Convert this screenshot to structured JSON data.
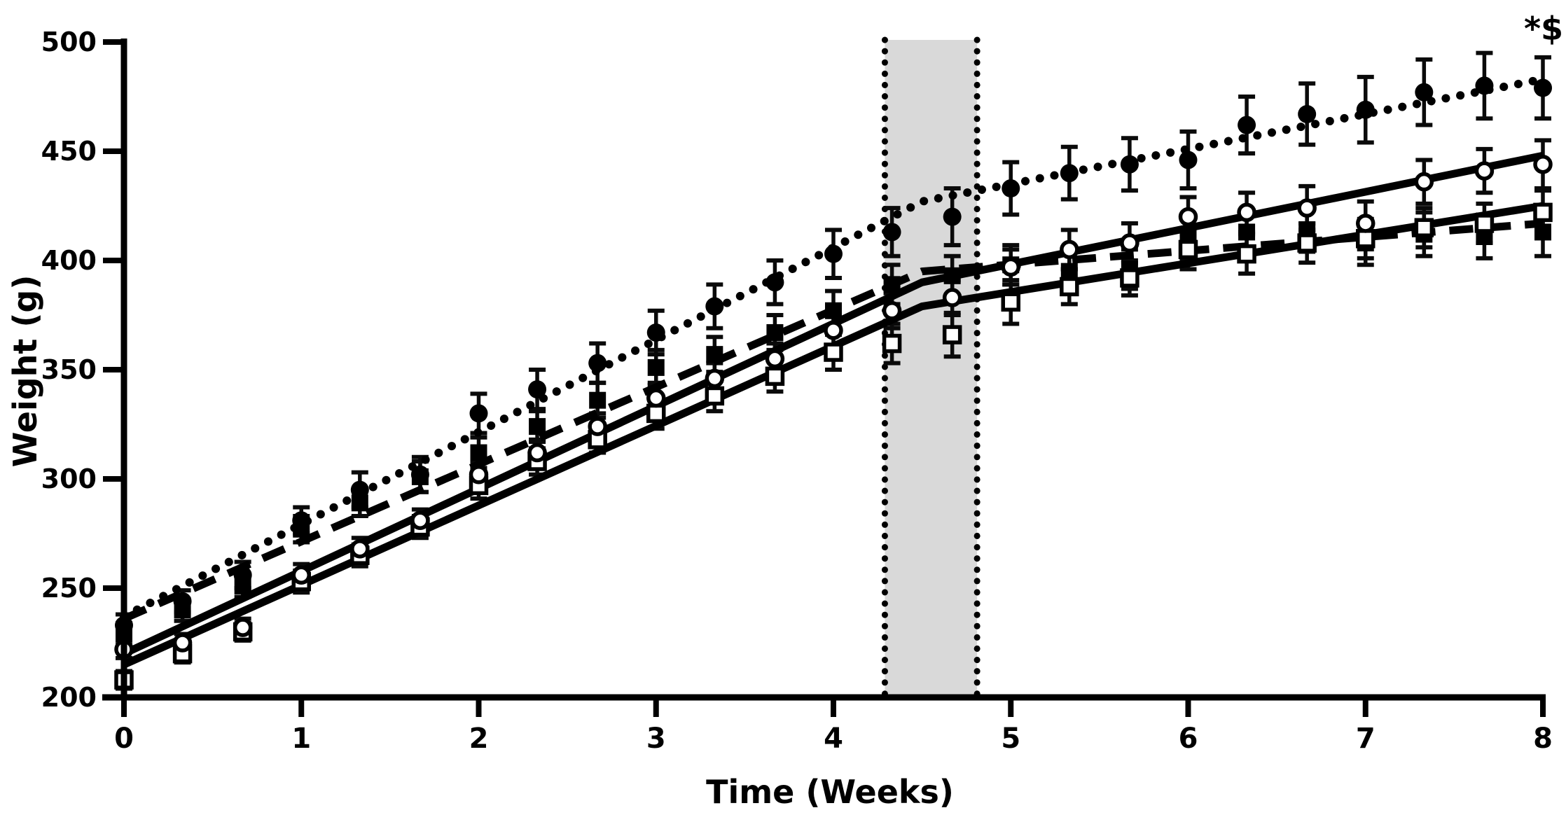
{
  "annotation": {
    "text": "*$"
  },
  "chart_data": {
    "type": "line",
    "title": "",
    "xlabel": "Time (Weeks)",
    "ylabel": "Weight (g)",
    "xlim": [
      0,
      8
    ],
    "ylim": [
      200,
      500
    ],
    "xticks": [
      0,
      1,
      2,
      3,
      4,
      5,
      6,
      7,
      8
    ],
    "yticks": [
      200,
      250,
      300,
      350,
      400,
      450,
      500
    ],
    "grid": false,
    "legend": "none",
    "background_color": "#ffffff",
    "line_color": "#000000",
    "shaded_region": {
      "x_start": 4.29,
      "x_end": 4.81,
      "color": "#d9d9d9",
      "border_style": "dotted-vertical-lines"
    },
    "annotation": {
      "text": "*$",
      "position": "top-right"
    },
    "x": [
      0,
      0.33,
      0.67,
      1,
      1.33,
      1.67,
      2,
      2.33,
      2.67,
      3,
      3.33,
      3.67,
      4,
      4.33,
      4.67,
      5,
      5.33,
      5.67,
      6,
      6.33,
      6.67,
      7,
      7.33,
      7.67,
      8
    ],
    "series": [
      {
        "id": "filled-square-dashed",
        "marker": "filled-square",
        "line": "dashed",
        "values": [
          229,
          240,
          251,
          277,
          289,
          301,
          312,
          324,
          336,
          351,
          357,
          367,
          377,
          389,
          393,
          398,
          395,
          396,
          410,
          413,
          414,
          408,
          412,
          411,
          413
        ],
        "errors": [
          5,
          5,
          5,
          6,
          6,
          7,
          7,
          7,
          8,
          8,
          8,
          8,
          9,
          9,
          9,
          9,
          9,
          9,
          10,
          10,
          10,
          10,
          10,
          10,
          11
        ],
        "trend": [
          [
            0,
            236
          ],
          [
            4.5,
            395
          ],
          [
            8,
            417
          ]
        ]
      },
      {
        "id": "open-square-solid",
        "marker": "open-square",
        "line": "solid",
        "values": [
          208,
          220,
          230,
          253,
          265,
          278,
          297,
          308,
          318,
          330,
          338,
          347,
          358,
          362,
          366,
          381,
          388,
          392,
          405,
          403,
          408,
          410,
          415,
          417,
          422
        ],
        "errors": [
          4,
          4,
          4,
          5,
          5,
          5,
          6,
          6,
          6,
          7,
          7,
          7,
          8,
          9,
          10,
          10,
          8,
          8,
          9,
          9,
          9,
          9,
          9,
          9,
          10
        ],
        "trend": [
          [
            0,
            215
          ],
          [
            4.5,
            379
          ],
          [
            8,
            425
          ]
        ]
      },
      {
        "id": "open-circle-solid",
        "marker": "open-circle",
        "line": "solid",
        "values": [
          222,
          225,
          232,
          256,
          268,
          281,
          302,
          312,
          324,
          337,
          346,
          355,
          368,
          377,
          383,
          397,
          405,
          408,
          420,
          422,
          424,
          417,
          436,
          441,
          444
        ],
        "errors": [
          4,
          4,
          4,
          5,
          5,
          5,
          6,
          6,
          6,
          7,
          7,
          7,
          8,
          8,
          8,
          8,
          9,
          9,
          9,
          9,
          10,
          10,
          10,
          10,
          11
        ],
        "trend": [
          [
            0,
            220
          ],
          [
            4.5,
            390
          ],
          [
            8,
            448
          ]
        ]
      },
      {
        "id": "filled-circle-dotted",
        "marker": "filled-circle",
        "line": "dotted",
        "values": [
          233,
          244,
          256,
          281,
          295,
          302,
          330,
          341,
          353,
          367,
          379,
          390,
          403,
          413,
          420,
          433,
          440,
          444,
          446,
          462,
          467,
          469,
          477,
          480,
          479
        ],
        "errors": [
          5,
          5,
          6,
          6,
          8,
          8,
          9,
          9,
          9,
          10,
          10,
          10,
          11,
          11,
          13,
          12,
          12,
          12,
          13,
          13,
          14,
          15,
          15,
          15,
          14
        ],
        "trend": [
          [
            0,
            237
          ],
          [
            4.5,
            427
          ],
          [
            8,
            483
          ]
        ]
      }
    ]
  }
}
